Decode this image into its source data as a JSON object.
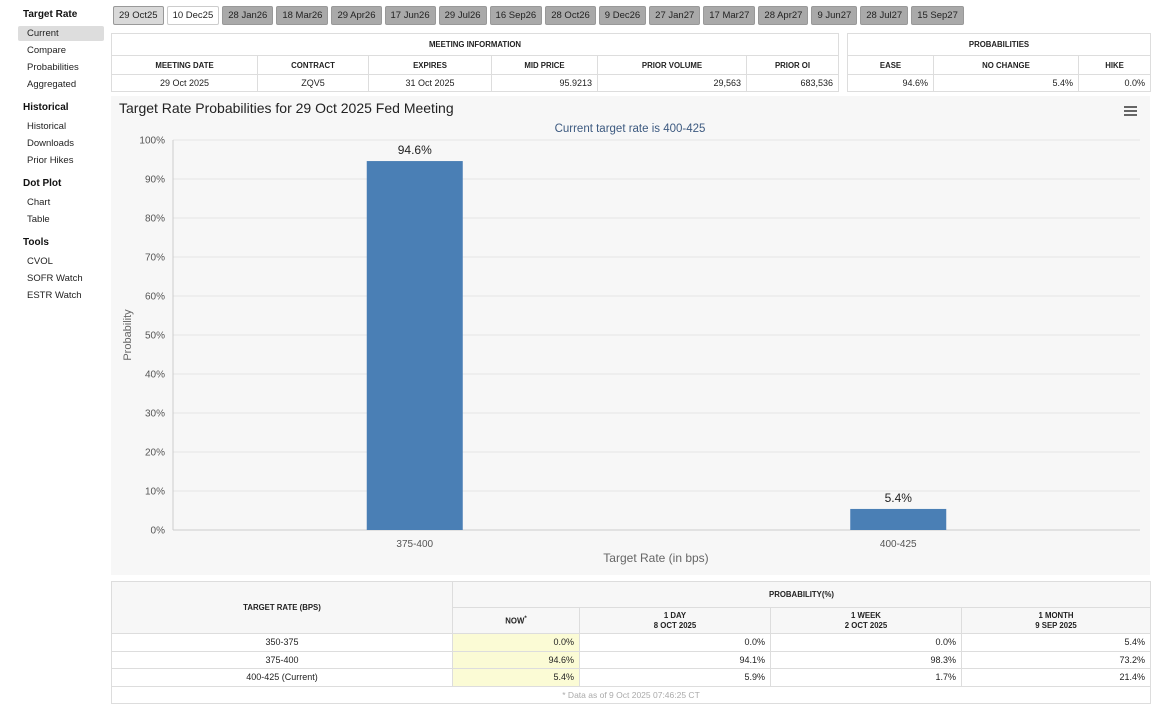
{
  "sidebar": [
    {
      "heading": "Target Rate",
      "items": [
        "Current",
        "Compare",
        "Probabilities",
        "Aggregated"
      ]
    },
    {
      "heading": "Historical",
      "items": [
        "Historical",
        "Downloads",
        "Prior Hikes"
      ]
    },
    {
      "heading": "Dot Plot",
      "items": [
        "Chart",
        "Table"
      ]
    },
    {
      "heading": "Tools",
      "items": [
        "CVOL",
        "SOFR Watch",
        "ESTR Watch"
      ]
    }
  ],
  "tabs": [
    "29 Oct25",
    "10 Dec25",
    "28 Jan26",
    "18 Mar26",
    "29 Apr26",
    "17 Jun26",
    "29 Jul26",
    "16 Sep26",
    "28 Oct26",
    "9 Dec26",
    "27 Jan27",
    "17 Mar27",
    "28 Apr27",
    "9 Jun27",
    "28 Jul27",
    "15 Sep27"
  ],
  "meeting_table": {
    "title": "MEETING INFORMATION",
    "headers": [
      "MEETING DATE",
      "CONTRACT",
      "EXPIRES",
      "MID PRICE",
      "PRIOR VOLUME",
      "PRIOR OI"
    ],
    "row": [
      "29 Oct 2025",
      "ZQV5",
      "31 Oct 2025",
      "95.9213",
      "29,563",
      "683,536"
    ]
  },
  "prob_table": {
    "title": "PROBABILITIES",
    "headers": [
      "EASE",
      "NO CHANGE",
      "HIKE"
    ],
    "row": [
      "94.6%",
      "5.4%",
      "0.0%"
    ]
  },
  "chart_data": {
    "type": "bar",
    "title": "Target Rate Probabilities for 29 Oct 2025 Fed Meeting",
    "subtitle": "Current target rate is 400-425",
    "categories": [
      "375-400",
      "400-425"
    ],
    "values": [
      94.6,
      5.4
    ],
    "value_labels": [
      "94.6%",
      "5.4%"
    ],
    "color": "#4a7fb5",
    "xlabel": "Target Rate (in bps)",
    "ylabel": "Probability",
    "ylim": [
      0,
      100
    ],
    "yticks": [
      {
        "value": 0,
        "label": "0%"
      },
      {
        "value": 10,
        "label": "10%"
      },
      {
        "value": 20,
        "label": "20%"
      },
      {
        "value": 30,
        "label": "30%"
      },
      {
        "value": 40,
        "label": "40%"
      },
      {
        "value": 50,
        "label": "50%"
      },
      {
        "value": 60,
        "label": "60%"
      },
      {
        "value": 70,
        "label": "70%"
      },
      {
        "value": 80,
        "label": "80%"
      },
      {
        "value": 90,
        "label": "90%"
      },
      {
        "value": 100,
        "label": "100%"
      }
    ]
  },
  "bottom_table": {
    "row_header": "TARGET RATE (BPS)",
    "group_header": "PROBABILITY(%)",
    "columns": [
      {
        "label": "NOW",
        "note": "*"
      },
      {
        "label": "1 DAY",
        "date": "8 OCT 2025"
      },
      {
        "label": "1 WEEK",
        "date": "2 OCT 2025"
      },
      {
        "label": "1 MONTH",
        "date": "9 SEP 2025"
      }
    ],
    "rows": [
      [
        "350-375",
        "0.0%",
        "0.0%",
        "0.0%",
        "5.4%"
      ],
      [
        "375-400",
        "94.6%",
        "94.1%",
        "98.3%",
        "73.2%"
      ],
      [
        "400-425 (Current)",
        "5.4%",
        "5.9%",
        "1.7%",
        "21.4%"
      ]
    ],
    "footnote": "* Data as of 9 Oct 2025 07:46:25 CT"
  }
}
